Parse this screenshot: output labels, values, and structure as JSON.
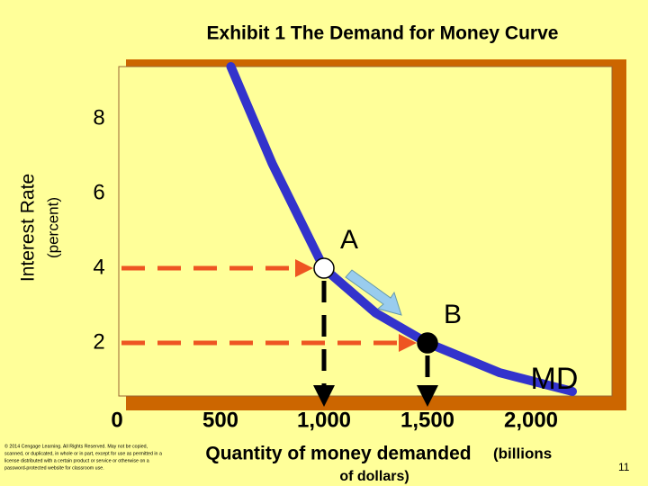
{
  "chart_data": {
    "type": "line",
    "title": "Exhibit 1 The Demand for Money Curve",
    "y_label": "Interest Rate",
    "y_label_note": "(percent)",
    "x_label": [
      "Quantity of money demanded",
      "(billions",
      "of dollars)"
    ],
    "series": [
      {
        "name": "MD",
        "color": "#3333cc",
        "x": [
          550,
          750,
          1000,
          1250,
          1500,
          1850,
          2200
        ],
        "values": [
          9.4,
          6.8,
          4,
          2.8,
          2,
          1.2,
          0.7
        ]
      }
    ],
    "points": [
      {
        "label": "A",
        "x": 1000,
        "y": 4,
        "color": "#ffffff"
      },
      {
        "label": "B",
        "x": 1500,
        "y": 2,
        "color": "#000000"
      }
    ],
    "guide_color": "#ee5522",
    "xlim": [
      0,
      2400
    ],
    "ylim": [
      0,
      9.4
    ],
    "xticks": [
      0,
      500,
      {
        "value": 1000,
        "label": "1,000"
      },
      {
        "value": 1500,
        "label": "1,500"
      },
      {
        "value": 2000,
        "label": "2,000"
      }
    ],
    "yticks": [
      2,
      4,
      6,
      8
    ],
    "copyright": [
      "© 2014 Cengage Learning. All Rights Reserved. May not be copied,",
      "scanned, or duplicated, in whole or in part, except for use as permitted in a",
      "license distributed with a certain product or service or otherwise on a",
      "password-protected website for classroom use."
    ],
    "page_number": "11"
  }
}
